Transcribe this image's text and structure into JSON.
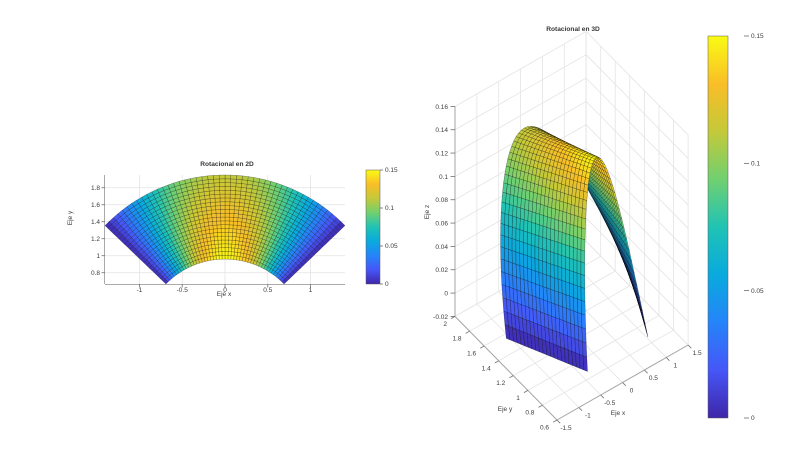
{
  "figure": {
    "background": "#ffffff"
  },
  "colormap": {
    "name": "parula",
    "anchors": [
      [
        62,
        38,
        168
      ],
      [
        70,
        86,
        248
      ],
      [
        37,
        132,
        249
      ],
      [
        9,
        170,
        222
      ],
      [
        32,
        195,
        180
      ],
      [
        113,
        208,
        112
      ],
      [
        196,
        201,
        57
      ],
      [
        249,
        190,
        39
      ],
      [
        249,
        251,
        20
      ]
    ]
  },
  "chart_data": [
    {
      "type": "surface",
      "projection": "2d",
      "title": "Rotacional en 2D",
      "xlabel": "Eje x",
      "ylabel": "Eje y",
      "xlim": [
        -1.4028,
        1.4028
      ],
      "ylim": [
        0.667,
        1.95
      ],
      "xticks": [
        -1,
        -0.5,
        0,
        0.5,
        1
      ],
      "yticks": [
        0.8,
        1,
        1.2,
        1.4,
        1.6,
        1.8
      ],
      "caxis": [
        0,
        0.15
      ],
      "colorbar_ticks": [
        0,
        0.05,
        0.1,
        0.15
      ],
      "grid": true,
      "domain": {
        "r_min": 0.96,
        "r_max": 1.95,
        "theta_min_deg": 44,
        "theta_max_deg": 136,
        "n_theta": 46,
        "n_r": 22
      },
      "surface_model": {
        "peak": 0.15,
        "radial_fade": 0.25
      }
    },
    {
      "type": "surface",
      "projection": "3d",
      "title": "Rotacional en 3D",
      "xlabel": "Eje x",
      "ylabel": "Eje y",
      "zlabel": "Eje z",
      "xlim": [
        -1.5,
        1.5
      ],
      "ylim": [
        0.6,
        2
      ],
      "zlim": [
        -0.02,
        0.16
      ],
      "xticks": [
        -1.5,
        -1,
        -0.5,
        0,
        0.5,
        1,
        1.5
      ],
      "yticks": [
        0.6,
        0.8,
        1,
        1.2,
        1.4,
        1.6,
        1.8,
        2
      ],
      "zticks": [
        -0.02,
        0,
        0.02,
        0.04,
        0.06,
        0.08,
        0.1,
        0.12,
        0.14,
        0.16
      ],
      "caxis": [
        0,
        0.15
      ],
      "colorbar_ticks": [
        0,
        0.05,
        0.1,
        0.15
      ],
      "grid": true,
      "view": {
        "azimuth": -37.5,
        "elevation": 30
      },
      "domain": {
        "r_min": 0.96,
        "r_max": 1.95,
        "theta_min_deg": 44,
        "theta_max_deg": 136,
        "n_theta": 46,
        "n_r": 22
      },
      "surface_model": {
        "peak": 0.15,
        "radial_fade": 0.25
      }
    }
  ]
}
